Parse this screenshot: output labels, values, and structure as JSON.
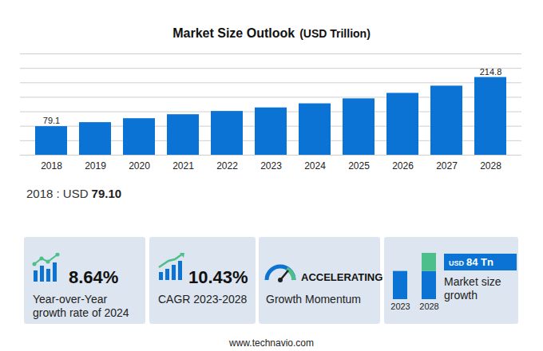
{
  "chart_data": {
    "type": "bar",
    "title": "Market Size Outlook",
    "subtitle": "(USD Trillion)",
    "categories": [
      "2018",
      "2019",
      "2020",
      "2021",
      "2022",
      "2023",
      "2024",
      "2025",
      "2026",
      "2027",
      "2028"
    ],
    "values": [
      79.1,
      90.1,
      101,
      112,
      121,
      130.8,
      142.1,
      155.8,
      171,
      191,
      214.8
    ],
    "value_labels": [
      "79.1",
      null,
      null,
      null,
      null,
      null,
      null,
      null,
      null,
      null,
      "214.8"
    ],
    "data_labels": true,
    "color": "#0a73d4",
    "ylim": [
      0,
      280
    ],
    "yticks": [
      0,
      40,
      80,
      120,
      160,
      200,
      240,
      280
    ],
    "grid": true,
    "tick_labels": "x"
  },
  "summary": {
    "label": "2018 : USD",
    "value": "79.10"
  },
  "cards": [
    {
      "value": "8.64%",
      "label": [
        "Year-over-Year",
        "growth rate of 2024"
      ]
    },
    {
      "value": "10.43%",
      "label": [
        "CAGR 2023-2028"
      ]
    },
    {
      "value": "ACCELERATING",
      "label": [
        "Growth Momentum"
      ]
    },
    {
      "badge_unit": "USD",
      "badge": "84 Tn",
      "label": [
        "Market size",
        "growth"
      ],
      "categories": [
        "2023",
        "2028"
      ],
      "color": "#4cbf8a"
    }
  ],
  "footer": "www.technavio.com"
}
